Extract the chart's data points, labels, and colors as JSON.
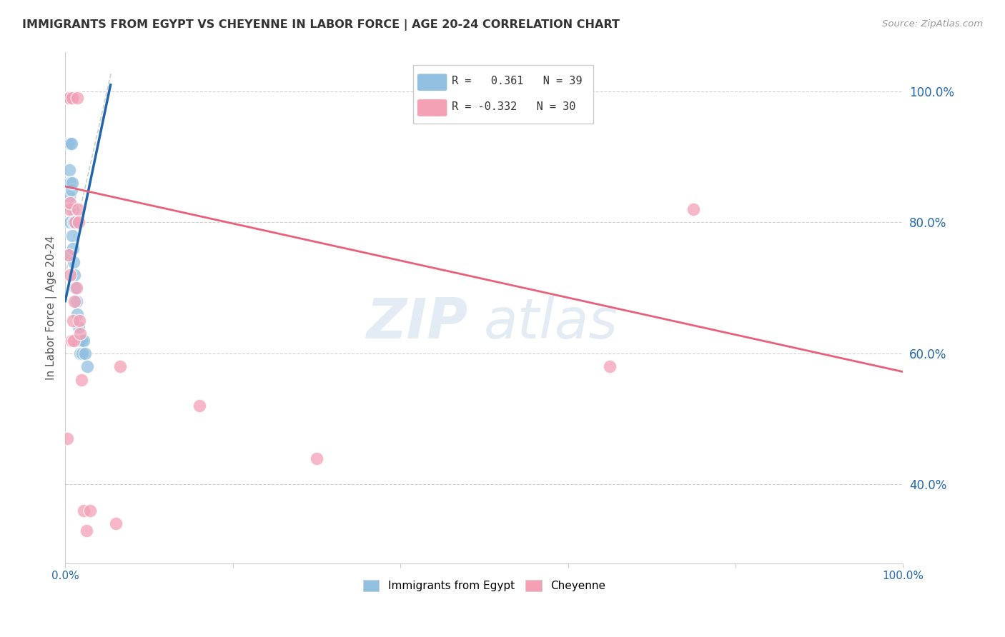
{
  "title": "IMMIGRANTS FROM EGYPT VS CHEYENNE IN LABOR FORCE | AGE 20-24 CORRELATION CHART",
  "source": "Source: ZipAtlas.com",
  "ylabel": "In Labor Force | Age 20-24",
  "xlim": [
    0.0,
    1.0
  ],
  "ylim": [
    0.28,
    1.06
  ],
  "yticks": [
    0.4,
    0.6,
    0.8,
    1.0
  ],
  "ytick_labels": [
    "40.0%",
    "60.0%",
    "80.0%",
    "100.0%"
  ],
  "xticks": [
    0.0,
    0.2,
    0.4,
    0.6,
    0.8,
    1.0
  ],
  "xtick_labels": [
    "0.0%",
    "",
    "",
    "",
    "",
    "100.0%"
  ],
  "blue_R": 0.361,
  "blue_N": 39,
  "pink_R": -0.332,
  "pink_N": 30,
  "blue_color": "#92c0e0",
  "pink_color": "#f4a0b5",
  "blue_line_color": "#2166ac",
  "pink_line_color": "#e8607a",
  "blue_scatter_x": [
    0.002,
    0.003,
    0.003,
    0.003,
    0.004,
    0.004,
    0.004,
    0.005,
    0.005,
    0.005,
    0.005,
    0.005,
    0.006,
    0.006,
    0.006,
    0.006,
    0.007,
    0.007,
    0.007,
    0.008,
    0.008,
    0.008,
    0.009,
    0.009,
    0.01,
    0.01,
    0.011,
    0.012,
    0.013,
    0.014,
    0.015,
    0.016,
    0.017,
    0.018,
    0.019,
    0.02,
    0.022,
    0.024,
    0.026
  ],
  "blue_scatter_y": [
    0.75,
    0.99,
    0.99,
    0.92,
    0.99,
    0.99,
    0.99,
    0.99,
    0.99,
    0.99,
    0.88,
    0.84,
    0.99,
    0.92,
    0.86,
    0.8,
    0.99,
    0.92,
    0.85,
    0.99,
    0.86,
    0.78,
    0.82,
    0.76,
    0.8,
    0.74,
    0.72,
    0.7,
    0.68,
    0.66,
    0.62,
    0.64,
    0.62,
    0.6,
    0.62,
    0.6,
    0.62,
    0.6,
    0.58
  ],
  "pink_scatter_x": [
    0.002,
    0.003,
    0.004,
    0.004,
    0.005,
    0.005,
    0.006,
    0.006,
    0.007,
    0.008,
    0.009,
    0.01,
    0.011,
    0.012,
    0.013,
    0.014,
    0.015,
    0.016,
    0.017,
    0.018,
    0.019,
    0.022,
    0.025,
    0.03,
    0.06,
    0.065,
    0.16,
    0.3,
    0.65,
    0.75
  ],
  "pink_scatter_y": [
    0.47,
    0.99,
    0.99,
    0.75,
    0.99,
    0.82,
    0.72,
    0.83,
    0.62,
    0.99,
    0.65,
    0.62,
    0.68,
    0.8,
    0.7,
    0.99,
    0.82,
    0.8,
    0.65,
    0.63,
    0.56,
    0.36,
    0.33,
    0.36,
    0.34,
    0.58,
    0.52,
    0.44,
    0.58,
    0.82
  ],
  "blue_trendline_x": [
    0.0,
    0.054
  ],
  "blue_trendline_y": [
    0.68,
    1.01
  ],
  "pink_trendline_x": [
    0.0,
    1.0
  ],
  "pink_trendline_y": [
    0.855,
    0.572
  ],
  "ref_line_x": [
    0.0,
    0.055
  ],
  "ref_line_y": [
    0.72,
    1.03
  ]
}
